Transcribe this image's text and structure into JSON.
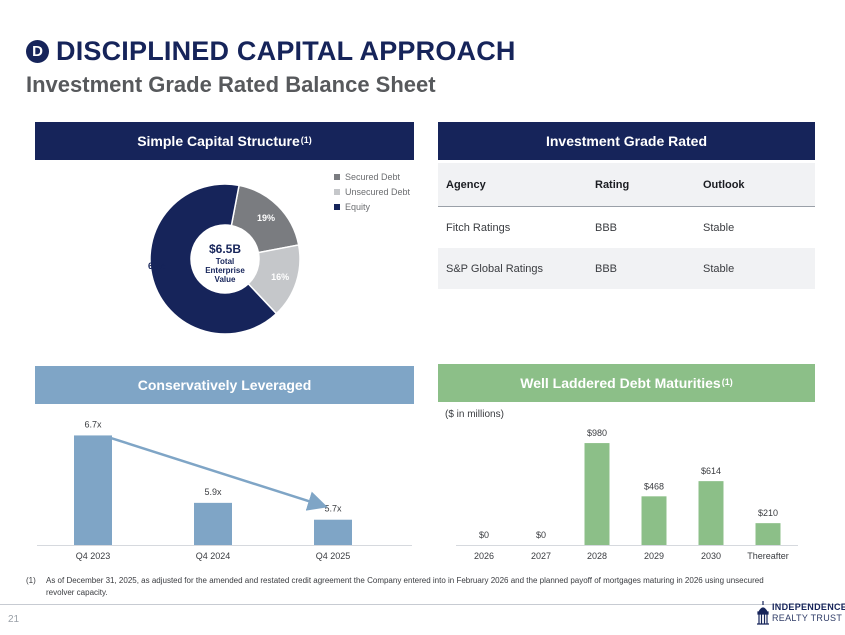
{
  "header": {
    "badge": "D",
    "title": "DISCIPLINED CAPITAL APPROACH",
    "subtitle": "Investment Grade Rated Balance Sheet"
  },
  "capital_structure": {
    "heading": "Simple Capital Structure",
    "heading_sup": "(1)",
    "center_value": "$6.5B",
    "center_label_line1": "Total",
    "center_label_line2": "Enterprise",
    "center_label_line3": "Value",
    "legend": [
      {
        "label": "Secured Debt",
        "color": "#7a7c80"
      },
      {
        "label": "Unsecured Debt",
        "color": "#c5c7ca"
      },
      {
        "label": "Equity",
        "color": "#16245a"
      }
    ]
  },
  "ratings": {
    "heading": "Investment Grade Rated",
    "columns": [
      "Agency",
      "Rating",
      "Outlook"
    ],
    "rows": [
      [
        "Fitch Ratings",
        "BBB",
        "Stable"
      ],
      [
        "S&P Global Ratings",
        "BBB",
        "Stable"
      ]
    ]
  },
  "leverage": {
    "heading": "Conservatively Leveraged"
  },
  "maturities": {
    "heading": "Well Laddered Debt Maturities",
    "heading_sup": "(1)",
    "units_note": "($ in millions)"
  },
  "chart_data": [
    {
      "type": "pie",
      "categories": [
        "Secured Debt",
        "Unsecured Debt",
        "Equity"
      ],
      "values": [
        19,
        16,
        65
      ],
      "labels": [
        "19%",
        "16%",
        "65%"
      ],
      "colors": [
        "#7a7c80",
        "#c5c7ca",
        "#16245a"
      ],
      "legend": "top-right",
      "donut_center_text": "$6.5B Total Enterprise Value"
    },
    {
      "type": "bar",
      "categories": [
        "Q4 2023",
        "Q4 2024",
        "Q4 2025"
      ],
      "values": [
        6.7,
        5.9,
        5.7
      ],
      "labels": [
        "6.7x",
        "5.9x",
        "5.7x"
      ],
      "color": "#7fa5c6",
      "ylim": [
        5.4,
        6.8
      ],
      "trend_arrow": true,
      "grid": false
    },
    {
      "type": "bar",
      "categories": [
        "2026",
        "2027",
        "2028",
        "2029",
        "2030",
        "Thereafter"
      ],
      "values": [
        0,
        0,
        980,
        468,
        614,
        210
      ],
      "labels": [
        "$0",
        "$0",
        "$980",
        "$468",
        "$614",
        "$210"
      ],
      "color": "#8cbf88",
      "ylim": [
        0,
        1000
      ],
      "grid": false
    }
  ],
  "footnote": {
    "mark": "(1)",
    "text": "As of December 31, 2025, as adjusted for the amended and restated credit agreement the Company entered into in February 2026 and the planned payoff of mortgages maturing in 2026 using unsecured revolver capacity."
  },
  "footer": {
    "page_number": "21",
    "logo_line1": "INDEPENDENCE",
    "logo_line2": "REALTY TRUST"
  }
}
